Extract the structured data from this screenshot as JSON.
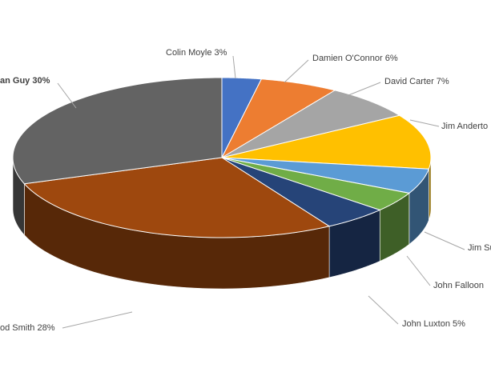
{
  "chart_data": {
    "type": "pie3d",
    "labels": [
      "Colin Moyle 3%",
      "Damien O'Connor 6%",
      "David Carter 7%",
      "Jim Anderto",
      "Jim Su",
      "John Falloon",
      "John Luxton 5%",
      "od Smith 28%",
      "an Guy 30%"
    ],
    "values": [
      3,
      6,
      7,
      11,
      5,
      4,
      5,
      28,
      30
    ],
    "colors": [
      "#4472c4",
      "#ed7d31",
      "#a5a5a5",
      "#ffc000",
      "#5b9bd5",
      "#70ad47",
      "#264478",
      "#9e480e",
      "#636363"
    ]
  }
}
